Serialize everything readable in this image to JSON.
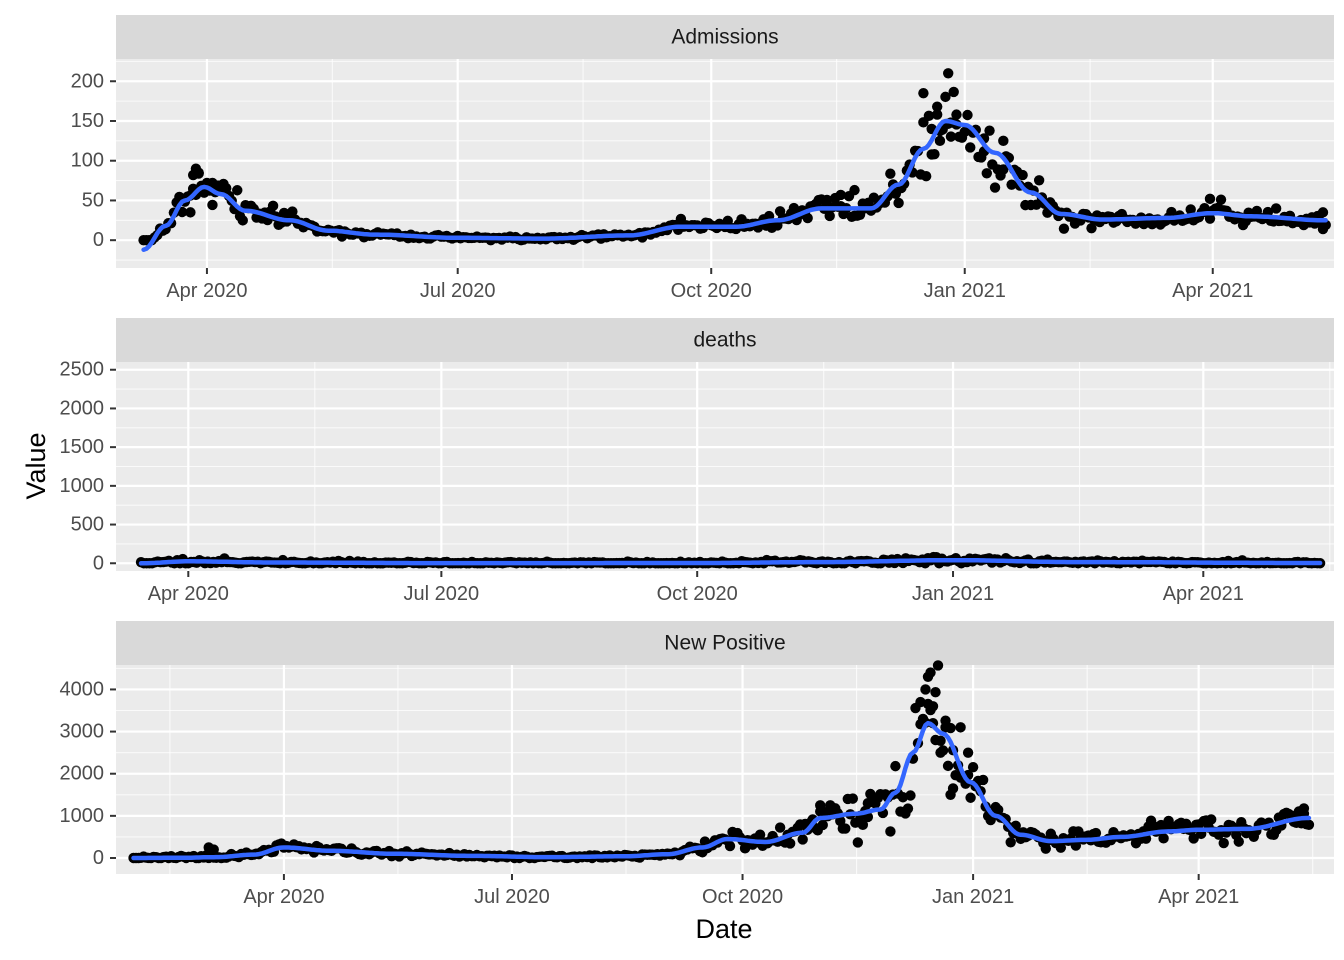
{
  "chart_data": {
    "type": "scatter",
    "layout": "faceted-vertical",
    "xlabel": "Date",
    "ylabel": "Value",
    "scales": "free",
    "smoothing": "loess",
    "colors": {
      "points": "#000000",
      "smooth": "#3366ff",
      "panel": "#ebebeb",
      "strip": "#d9d9d9"
    },
    "panels": [
      {
        "title": "Admissions",
        "xlim": [
          "2020-02-28",
          "2021-05-15"
        ],
        "ylim": [
          -35,
          228
        ],
        "x_ticks": [
          {
            "date": "2020-04-01",
            "label": "Apr 2020"
          },
          {
            "date": "2020-07-01",
            "label": "Jul 2020"
          },
          {
            "date": "2020-10-01",
            "label": "Oct 2020"
          },
          {
            "date": "2021-01-01",
            "label": "Jan 2021"
          },
          {
            "date": "2021-04-01",
            "label": "Apr 2021"
          }
        ],
        "y_ticks": [
          0,
          50,
          100,
          150,
          200
        ],
        "smooth": [
          [
            "2020-03-09",
            -12
          ],
          [
            "2020-03-17",
            18
          ],
          [
            "2020-03-24",
            50
          ],
          [
            "2020-03-31",
            67
          ],
          [
            "2020-04-06",
            58
          ],
          [
            "2020-04-15",
            37
          ],
          [
            "2020-05-01",
            25
          ],
          [
            "2020-05-15",
            12
          ],
          [
            "2020-06-01",
            7
          ],
          [
            "2020-07-01",
            3
          ],
          [
            "2020-08-01",
            2
          ],
          [
            "2020-09-01",
            6
          ],
          [
            "2020-09-20",
            17
          ],
          [
            "2020-10-10",
            17
          ],
          [
            "2020-10-25",
            25
          ],
          [
            "2020-11-10",
            40
          ],
          [
            "2020-11-28",
            40
          ],
          [
            "2020-12-08",
            70
          ],
          [
            "2020-12-17",
            115
          ],
          [
            "2020-12-25",
            150
          ],
          [
            "2021-01-01",
            145
          ],
          [
            "2021-01-12",
            110
          ],
          [
            "2021-01-25",
            60
          ],
          [
            "2021-02-05",
            33
          ],
          [
            "2021-02-20",
            26
          ],
          [
            "2021-03-15",
            28
          ],
          [
            "2021-04-01",
            34
          ],
          [
            "2021-04-15",
            30
          ],
          [
            "2021-05-12",
            25
          ]
        ],
        "noise_sd": 0.18,
        "seed": 7,
        "spikes": [
          [
            "2020-03-28",
            90
          ],
          [
            "2020-03-29",
            85
          ],
          [
            "2020-03-27",
            82
          ],
          [
            "2020-04-01",
            72
          ],
          [
            "2020-04-03",
            72
          ],
          [
            "2020-03-26",
            35
          ],
          [
            "2020-03-22",
            50
          ],
          [
            "2020-12-17",
            185
          ],
          [
            "2020-12-22",
            168
          ],
          [
            "2020-12-26",
            210
          ],
          [
            "2020-12-29",
            158
          ],
          [
            "2020-12-27",
            148
          ],
          [
            "2020-12-20",
            140
          ],
          [
            "2020-12-23",
            125
          ],
          [
            "2021-01-08",
            128
          ],
          [
            "2021-01-15",
            125
          ],
          [
            "2020-11-22",
            63
          ],
          [
            "2020-11-17",
            57
          ],
          [
            "2021-03-31",
            52
          ],
          [
            "2021-05-11",
            35
          ]
        ]
      },
      {
        "title": "deaths",
        "xlim": [
          "2020-03-06",
          "2021-05-18"
        ],
        "ylim": [
          -100,
          2600
        ],
        "x_ticks": [
          {
            "date": "2020-04-01",
            "label": "Apr 2020"
          },
          {
            "date": "2020-07-01",
            "label": "Jul 2020"
          },
          {
            "date": "2020-10-01",
            "label": "Oct 2020"
          },
          {
            "date": "2021-01-01",
            "label": "Jan 2021"
          },
          {
            "date": "2021-04-01",
            "label": "Apr 2021"
          }
        ],
        "y_ticks": [
          0,
          500,
          1000,
          1500,
          2000,
          2500
        ],
        "smooth": [
          [
            "2020-03-15",
            0
          ],
          [
            "2020-04-01",
            25
          ],
          [
            "2020-05-01",
            10
          ],
          [
            "2020-07-01",
            2
          ],
          [
            "2020-10-01",
            3
          ],
          [
            "2020-11-15",
            15
          ],
          [
            "2021-01-01",
            40
          ],
          [
            "2021-02-15",
            15
          ],
          [
            "2021-05-13",
            3
          ]
        ],
        "noise_sd": 0.5,
        "seed": 11,
        "spikes": []
      },
      {
        "title": "New Positive",
        "xlim": [
          "2020-01-25",
          "2021-05-25"
        ],
        "ylim": [
          -380,
          4580
        ],
        "x_ticks": [
          {
            "date": "2020-04-01",
            "label": "Apr 2020"
          },
          {
            "date": "2020-07-01",
            "label": "Jul 2020"
          },
          {
            "date": "2020-10-01",
            "label": "Oct 2020"
          },
          {
            "date": "2021-01-01",
            "label": "Jan 2021"
          },
          {
            "date": "2021-04-01",
            "label": "Apr 2021"
          }
        ],
        "y_ticks": [
          0,
          1000,
          2000,
          3000,
          4000
        ],
        "smooth": [
          [
            "2020-02-01",
            0
          ],
          [
            "2020-02-20",
            5
          ],
          [
            "2020-03-05",
            20
          ],
          [
            "2020-03-20",
            80
          ],
          [
            "2020-04-01",
            250
          ],
          [
            "2020-04-20",
            170
          ],
          [
            "2020-05-15",
            100
          ],
          [
            "2020-06-15",
            50
          ],
          [
            "2020-07-15",
            20
          ],
          [
            "2020-08-15",
            40
          ],
          [
            "2020-09-01",
            90
          ],
          [
            "2020-09-15",
            250
          ],
          [
            "2020-09-25",
            450
          ],
          [
            "2020-10-10",
            380
          ],
          [
            "2020-10-25",
            600
          ],
          [
            "2020-11-01",
            950
          ],
          [
            "2020-11-15",
            1050
          ],
          [
            "2020-11-25",
            1150
          ],
          [
            "2020-12-01",
            1550
          ],
          [
            "2020-12-08",
            2500
          ],
          [
            "2020-12-14",
            3200
          ],
          [
            "2020-12-20",
            2950
          ],
          [
            "2020-12-31",
            1800
          ],
          [
            "2021-01-10",
            1000
          ],
          [
            "2021-01-20",
            550
          ],
          [
            "2021-02-01",
            400
          ],
          [
            "2021-02-15",
            430
          ],
          [
            "2021-03-01",
            500
          ],
          [
            "2021-03-20",
            630
          ],
          [
            "2021-04-01",
            670
          ],
          [
            "2021-04-20",
            690
          ],
          [
            "2021-05-15",
            950
          ]
        ],
        "noise_sd": 0.22,
        "seed": 23,
        "spikes": [
          [
            "2020-12-14",
            4300
          ],
          [
            "2020-12-15",
            4400
          ],
          [
            "2020-12-13",
            4000
          ],
          [
            "2020-12-11",
            3700
          ],
          [
            "2020-12-16",
            3600
          ],
          [
            "2020-12-12",
            3300
          ],
          [
            "2020-12-17",
            2800
          ],
          [
            "2020-12-19",
            2500
          ],
          [
            "2020-12-23",
            1500
          ],
          [
            "2020-12-24",
            1650
          ],
          [
            "2020-12-21",
            3100
          ],
          [
            "2020-12-27",
            3100
          ],
          [
            "2020-12-30",
            2500
          ],
          [
            "2020-12-26",
            2200
          ],
          [
            "2021-01-02",
            1700
          ],
          [
            "2020-11-01",
            1250
          ],
          [
            "2020-11-05",
            1250
          ],
          [
            "2020-11-20",
            1300
          ],
          [
            "2020-03-02",
            250
          ],
          [
            "2020-03-04",
            200
          ],
          [
            "2021-05-13",
            1050
          ],
          [
            "2021-05-10",
            1020
          ]
        ]
      }
    ]
  }
}
